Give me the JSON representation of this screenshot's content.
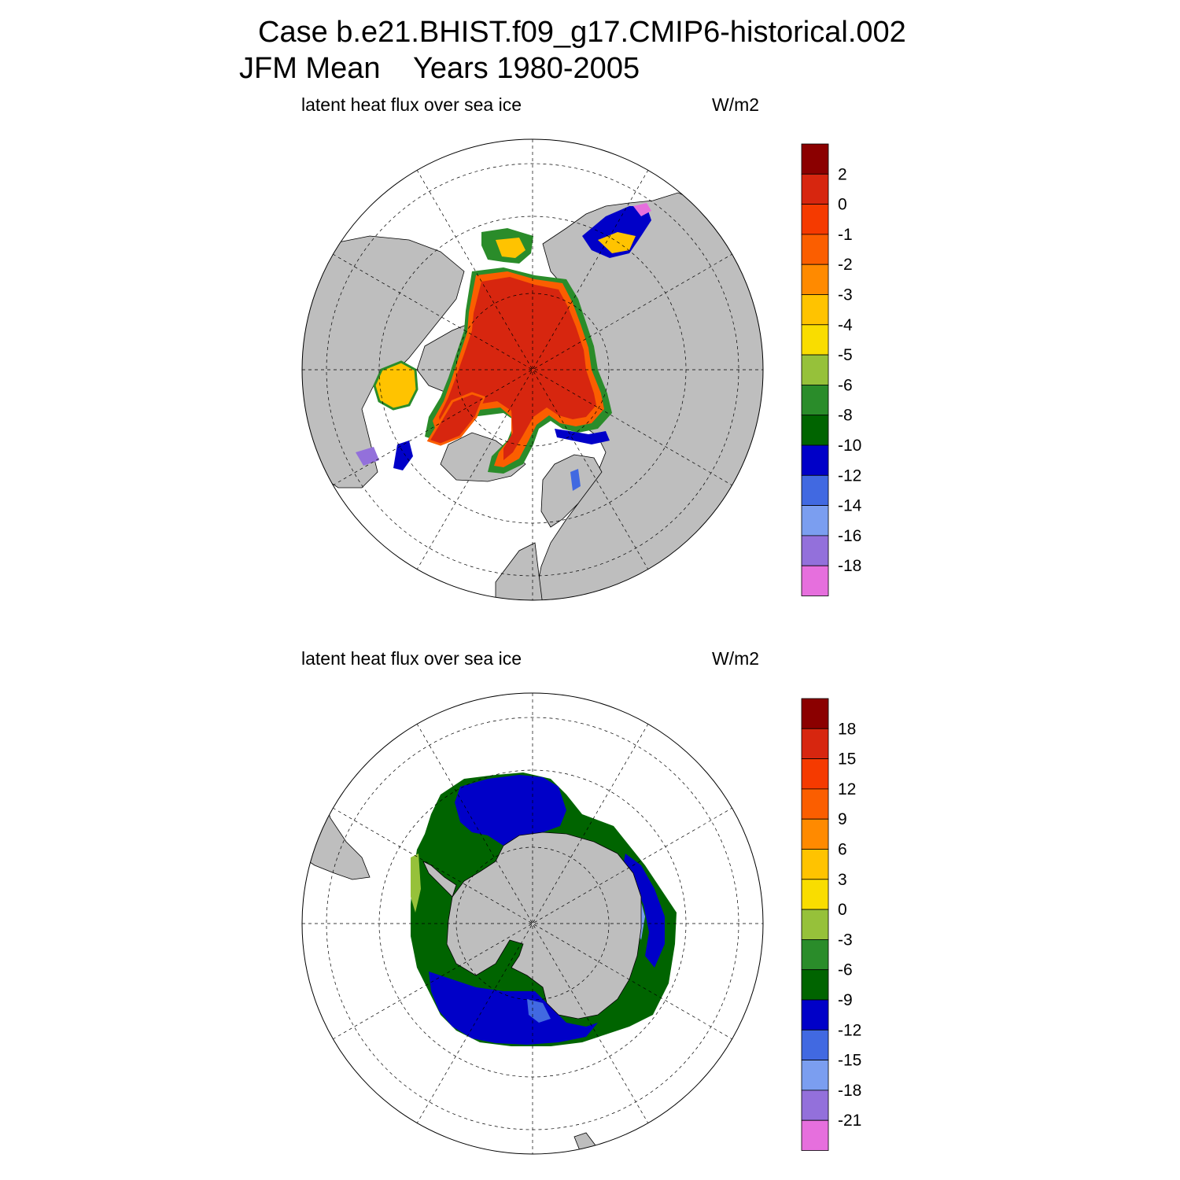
{
  "title": {
    "line1": "Case b.e21.BHIST.f09_g17.CMIP6-historical.002",
    "line2": "JFM Mean    Years 1980-2005"
  },
  "panels": [
    {
      "name": "arctic",
      "left_label": "latent heat flux over sea ice",
      "right_label": "W/m2",
      "colorbar": {
        "labels": [
          "2",
          "0",
          "-1",
          "-2",
          "-3",
          "-4",
          "-5",
          "-6",
          "-8",
          "-10",
          "-12",
          "-14",
          "-16",
          "-18"
        ],
        "colors": [
          "#8b0000",
          "#d7260f",
          "#f53a00",
          "#fb5e00",
          "#ff8a00",
          "#ffc300",
          "#f9dd00",
          "#96c13a",
          "#2a8c2a",
          "#006400",
          "#0000c8",
          "#4169e1",
          "#7b9ef0",
          "#9370db",
          "#e66fdd"
        ]
      }
    },
    {
      "name": "antarctic",
      "left_label": "latent heat flux over sea ice",
      "right_label": "W/m2",
      "colorbar": {
        "labels": [
          "18",
          "15",
          "12",
          "9",
          "6",
          "3",
          "0",
          "-3",
          "-6",
          "-9",
          "-12",
          "-15",
          "-18",
          "-21"
        ],
        "colors": [
          "#8b0000",
          "#d7260f",
          "#f53a00",
          "#fb5e00",
          "#ff8a00",
          "#ffc300",
          "#f9dd00",
          "#96c13a",
          "#2a8c2a",
          "#006400",
          "#0000c8",
          "#4169e1",
          "#7b9ef0",
          "#9370db",
          "#e66fdd"
        ]
      }
    }
  ],
  "colors": {
    "land": "#bebebe",
    "ocean": "#ffffff"
  }
}
